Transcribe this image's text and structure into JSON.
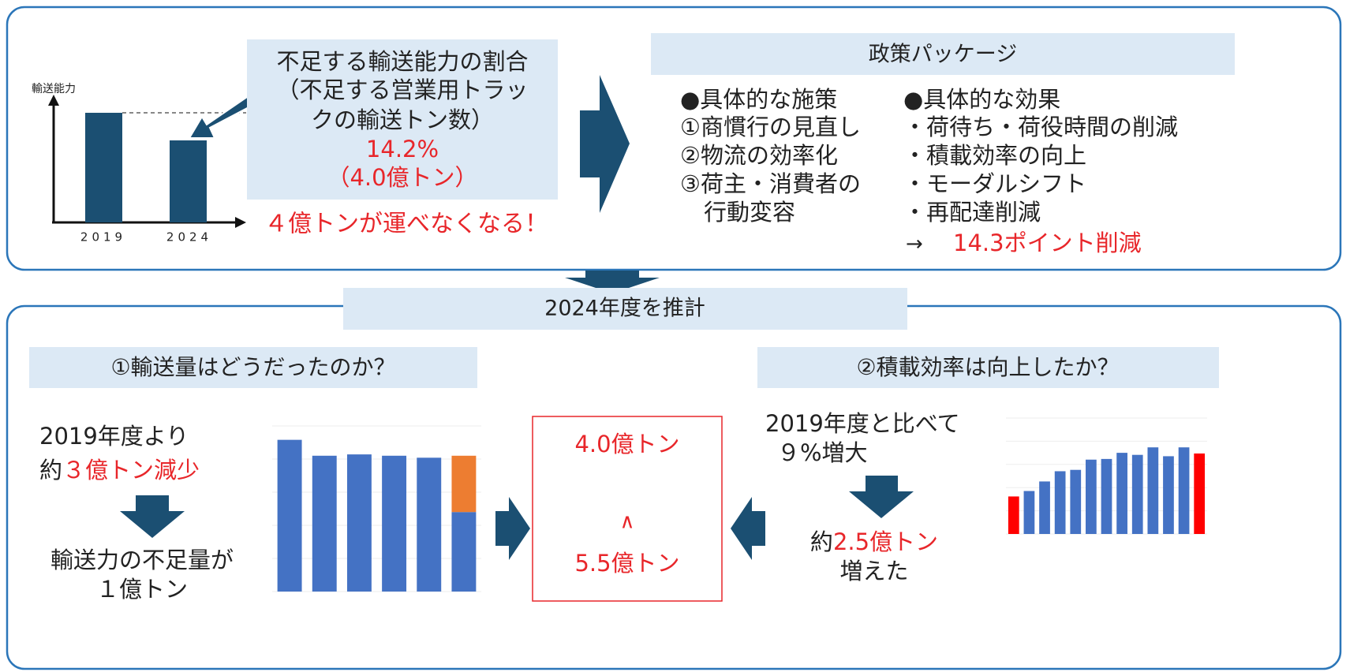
{
  "top": {
    "schematic": {
      "y_label": "輸送能力",
      "categories": [
        "2019",
        "2024"
      ]
    },
    "shortage": {
      "lines": [
        "不足する輸送能力の割合",
        "（不足する営業用トラッ",
        "クの輸送トン数）"
      ],
      "rate": "14.2%",
      "tons": "（4.0億トン）"
    },
    "warning": "４億トンが運べなくなる！",
    "policy": {
      "title": "政策パッケージ",
      "measures": {
        "heading": "●具体的な施策",
        "items": [
          "①商慣行の見直し",
          "②物流の効率化",
          "③荷主・消費者の",
          "行動変容"
        ]
      },
      "effects": {
        "heading": "●具体的な効果",
        "items": [
          "・荷待ち・荷役時間の削減",
          "・積載効率の向上",
          "・モーダルシフト",
          "・再配達削減"
        ],
        "arrow": "→",
        "result": "14.3ポイント削減"
      }
    }
  },
  "bottom": {
    "title": "2024年度を推計",
    "left": {
      "heading": "①輸送量はどうだったのか？",
      "line1": "2019年度より",
      "line2_prefix": "約",
      "line2_red": "３億トン減少",
      "line3": "輸送力の不足量が",
      "line4": "１億トン",
      "chart": {
        "type": "bar",
        "ylim": [
          0,
          250
        ],
        "values": [
          229,
          205,
          207,
          205,
          202,
          120
        ],
        "top_segment": 85,
        "color": "#4472c4",
        "top_color": "#ed7d31"
      }
    },
    "center": {
      "upper": "4.0億トン",
      "sign": "∧",
      "lower": "5.5億トン"
    },
    "right": {
      "heading": "②積載効率は向上したか？",
      "line1": "2019年度と比べて",
      "line2": "９%増大",
      "line3_prefix": "約",
      "line3_red": "2.5億トン",
      "line4": "増えた",
      "chart": {
        "type": "bar",
        "ylim": [
          0,
          170
        ],
        "values": [
          55,
          63,
          77,
          92,
          94,
          109,
          110,
          119,
          116,
          127,
          114,
          127,
          118
        ],
        "color": "#4472c4",
        "highlight_color": "#ff0000",
        "highlight": [
          0,
          12
        ]
      }
    }
  }
}
